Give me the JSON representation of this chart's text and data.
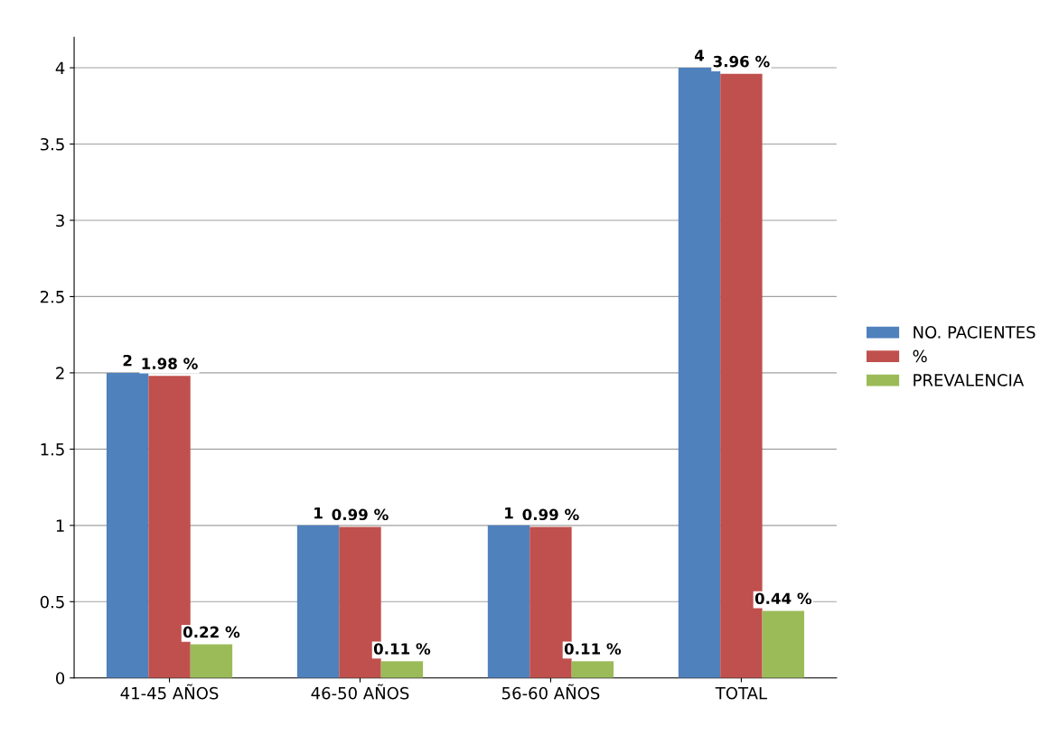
{
  "chart_data": {
    "type": "bar",
    "categories": [
      "41-45 AÑOS",
      "46-50 AÑOS",
      "56-60 AÑOS",
      "TOTAL"
    ],
    "series": [
      {
        "name": "NO. PACIENTES",
        "color": "#4f81bd",
        "values": [
          2,
          1,
          1,
          4
        ],
        "value_labels": [
          "2",
          "1",
          "1",
          "4"
        ]
      },
      {
        "name": "%",
        "color": "#c0504d",
        "values": [
          1.98,
          0.99,
          0.99,
          3.96
        ],
        "value_labels": [
          "1.98 %",
          "0.99 %",
          "0.99 %",
          "3.96 %"
        ]
      },
      {
        "name": "PREVALENCIA",
        "color": "#9bbb59",
        "values": [
          0.22,
          0.11,
          0.11,
          0.44
        ],
        "value_labels": [
          "0.22 %",
          "0.11 %",
          "0.11 %",
          "0.44 %"
        ]
      }
    ],
    "ylim": [
      0,
      4.2
    ],
    "yticks": [
      0,
      0.5,
      1,
      1.5,
      2,
      2.5,
      3,
      3.5,
      4
    ],
    "grid": "y",
    "legend": "right"
  }
}
